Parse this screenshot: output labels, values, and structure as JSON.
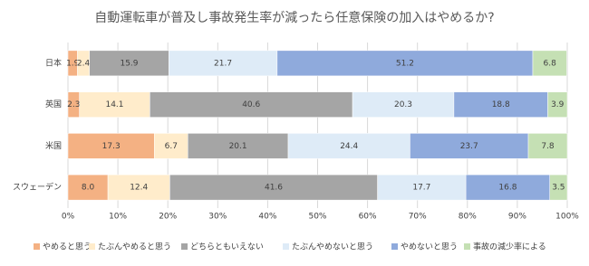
{
  "chart_data": {
    "type": "bar",
    "orientation": "horizontal",
    "stacked": true,
    "title": "自動運転車が普及し事故発生率が減ったら任意保険の加入はやめるか?",
    "categories": [
      "日本",
      "英国",
      "米国",
      "スウェーデン"
    ],
    "series": [
      {
        "name": "やめると思う",
        "color": "#f4b183",
        "values": [
          1.9,
          2.3,
          17.3,
          8.0
        ],
        "value_labels": [
          "1.9",
          "2.3",
          "17.3",
          "8.0"
        ]
      },
      {
        "name": "たぶんやめると思う",
        "color": "#ffeccb",
        "values": [
          2.4,
          14.1,
          6.7,
          12.4
        ],
        "value_labels": [
          "2.4",
          "14.1",
          "6.7",
          "12.4"
        ]
      },
      {
        "name": "どちらともいえない",
        "color": "#a5a5a5",
        "values": [
          15.9,
          40.6,
          20.1,
          41.6
        ],
        "value_labels": [
          "15.9",
          "40.6",
          "20.1",
          "41.6"
        ]
      },
      {
        "name": "たぶんやめないと思う",
        "color": "#deebf7",
        "values": [
          21.7,
          20.3,
          24.4,
          17.7
        ],
        "value_labels": [
          "21.7",
          "20.3",
          "24.4",
          "17.7"
        ]
      },
      {
        "name": "やめないと思う",
        "color": "#8faadc",
        "values": [
          51.2,
          18.8,
          23.7,
          16.8
        ],
        "value_labels": [
          "51.2",
          "18.8",
          "23.7",
          "16.8"
        ]
      },
      {
        "name": "事故の減少率による",
        "color": "#c5e0b4",
        "values": [
          6.8,
          3.9,
          7.8,
          3.5
        ],
        "value_labels": [
          "6.8",
          "3.9",
          "7.8",
          "3.5"
        ]
      }
    ],
    "xlim": [
      0,
      100
    ],
    "xticks": [
      {
        "value": 0,
        "label": "0%"
      },
      {
        "value": 10,
        "label": "10%"
      },
      {
        "value": 20,
        "label": "20%"
      },
      {
        "value": 30,
        "label": "30%"
      },
      {
        "value": 40,
        "label": "40%"
      },
      {
        "value": 50,
        "label": "50%"
      },
      {
        "value": 60,
        "label": "60%"
      },
      {
        "value": 70,
        "label": "70%"
      },
      {
        "value": 80,
        "label": "80%"
      },
      {
        "value": 90,
        "label": "90%"
      },
      {
        "value": 100,
        "label": "100%"
      }
    ],
    "grid": true,
    "legend": "bottom"
  }
}
